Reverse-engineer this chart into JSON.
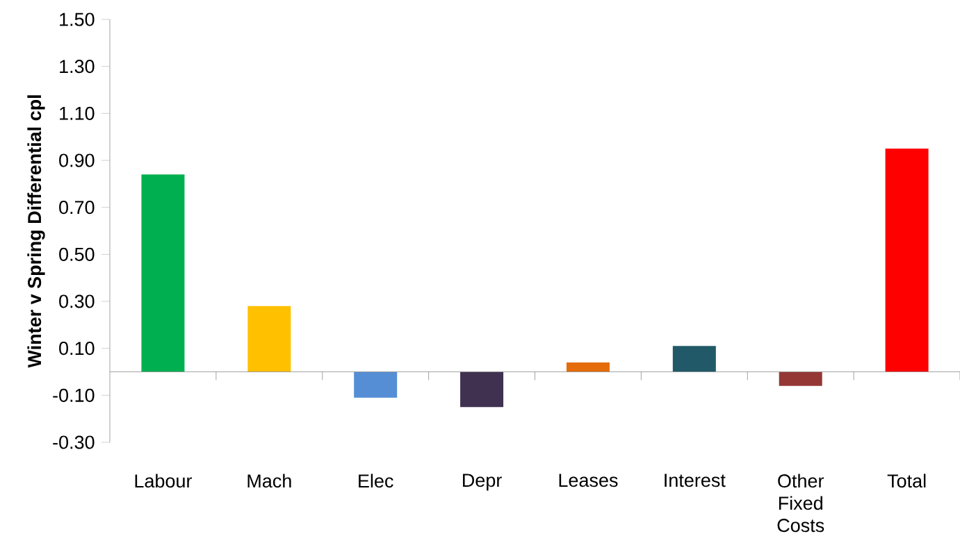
{
  "chart_data": {
    "type": "bar",
    "ylabel": "Winter v Spring Differential cpl",
    "categories": [
      "Labour",
      "Mach",
      "Elec",
      "Depr",
      "Leases",
      "Interest",
      "Other Fixed Costs",
      "Total"
    ],
    "values": [
      0.84,
      0.28,
      -0.11,
      -0.15,
      0.04,
      0.11,
      -0.06,
      0.95
    ],
    "colors": [
      "#00b050",
      "#ffc000",
      "#558ed5",
      "#403151",
      "#e46c0a",
      "#215968",
      "#953735",
      "#ff0000"
    ],
    "ylim": [
      -0.3,
      1.5
    ],
    "yticks": [
      {
        "value": -0.3,
        "label": "-0.30"
      },
      {
        "value": -0.1,
        "label": "-0.10"
      },
      {
        "value": 0.1,
        "label": "0.10"
      },
      {
        "value": 0.3,
        "label": "0.30"
      },
      {
        "value": 0.5,
        "label": "0.50"
      },
      {
        "value": 0.7,
        "label": "0.70"
      },
      {
        "value": 0.9,
        "label": "0.90"
      },
      {
        "value": 1.1,
        "label": "1.10"
      },
      {
        "value": 1.3,
        "label": "1.30"
      },
      {
        "value": 1.5,
        "label": "1.50"
      }
    ],
    "grid": false
  }
}
